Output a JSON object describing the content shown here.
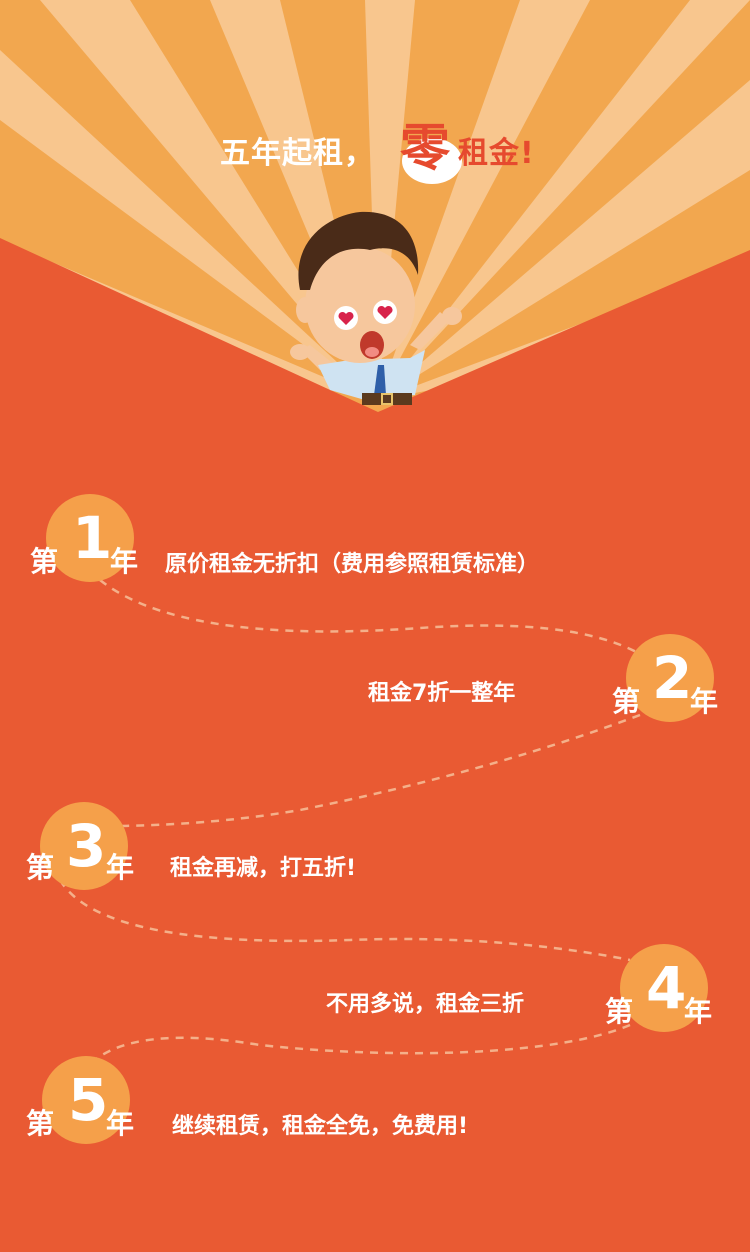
{
  "colors": {
    "background": "#E95A33",
    "rays_light": "#F8C68E",
    "rays_dark": "#F2A74F",
    "circle": "#F5A04A",
    "path": "#F4B08A"
  },
  "headline": {
    "pre": "五年起租，",
    "zero": "零",
    "post": "租金!"
  },
  "steps": [
    {
      "di": "第",
      "num": "1",
      "nian": "年",
      "desc": "原价租金无折扣（费用参照租赁标准）"
    },
    {
      "di": "第",
      "num": "2",
      "nian": "年",
      "desc": "租金7折一整年"
    },
    {
      "di": "第",
      "num": "3",
      "nian": "年",
      "desc": "租金再减，打五折!"
    },
    {
      "di": "第",
      "num": "4",
      "nian": "年",
      "desc": "不用多说，租金三折"
    },
    {
      "di": "第",
      "num": "5",
      "nian": "年",
      "desc": "继续租赁，租金全免，免费用!"
    }
  ],
  "icons": {
    "mascot": "happy-businessman-icon"
  }
}
